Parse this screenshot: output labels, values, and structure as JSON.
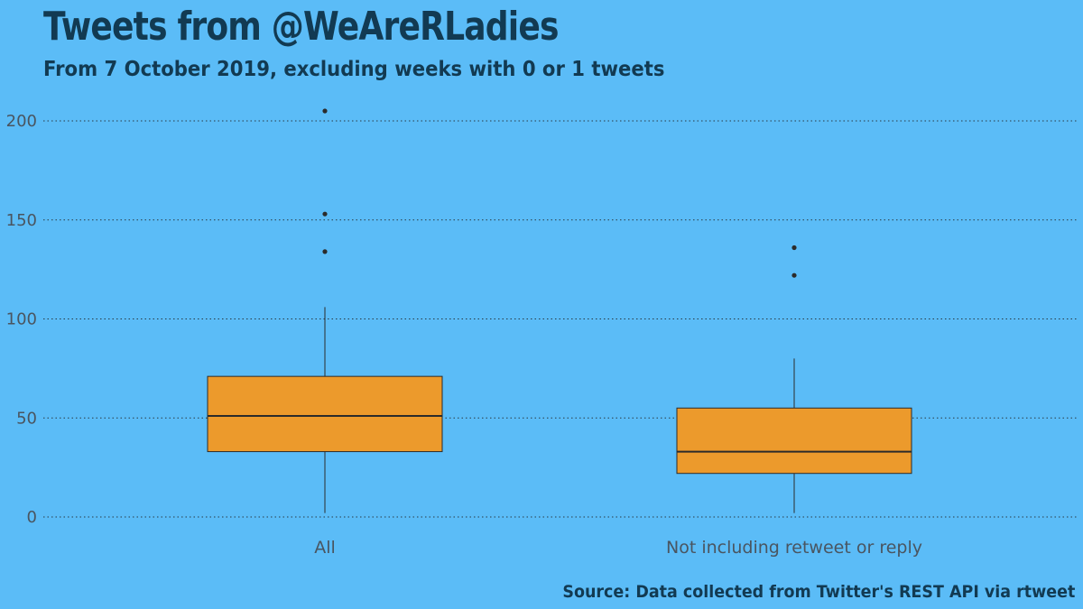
{
  "chart_data": {
    "type": "boxplot",
    "title": "Tweets from @WeAreRLadies",
    "subtitle": "From 7 October 2019, excluding weeks with 0 or 1 tweets",
    "caption": "Source: Data collected from Twitter's REST API via rtweet",
    "xlabel": "",
    "ylabel": "",
    "ylim": [
      -2,
      208
    ],
    "yticks": [
      0,
      50,
      100,
      150,
      200
    ],
    "grid": "horizontal dotted",
    "categories": [
      "All",
      "Not including retweet or reply"
    ],
    "boxes": [
      {
        "category": "All",
        "min": 2,
        "q1": 33,
        "median": 51,
        "q3": 71,
        "max": 106,
        "outliers": [
          134,
          153,
          205
        ]
      },
      {
        "category": "Not including retweet or reply",
        "min": 2,
        "q1": 22,
        "median": 33,
        "q3": 55,
        "max": 80,
        "outliers": [
          122,
          136
        ]
      }
    ],
    "colors": {
      "background": "#5bbcf7",
      "box_fill": "#ec9a2c",
      "line": "#2b2b2b",
      "title": "#123a52"
    }
  }
}
